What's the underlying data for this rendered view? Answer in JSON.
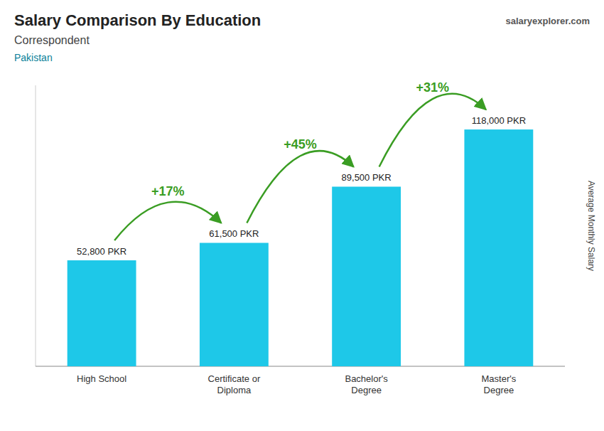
{
  "chart_data": {
    "type": "bar",
    "title": "Salary Comparison By Education",
    "subtitle": "Correspondent",
    "country": "Pakistan",
    "source": "salaryexplorer.com",
    "ylabel": "Average Monthly Salary",
    "categories": [
      "High School",
      "Certificate or\nDiploma",
      "Bachelor's\nDegree",
      "Master's\nDegree"
    ],
    "values": [
      52800,
      61500,
      89500,
      118000
    ],
    "value_labels": [
      "52,800 PKR",
      "61,500 PKR",
      "89,500 PKR",
      "118,000 PKR"
    ],
    "change_labels": [
      "+17%",
      "+45%",
      "+31%"
    ],
    "color": "#1ec8e8",
    "ylim": [
      0,
      140000
    ],
    "tick_labels": "x",
    "data_labels": true,
    "grid": false
  }
}
